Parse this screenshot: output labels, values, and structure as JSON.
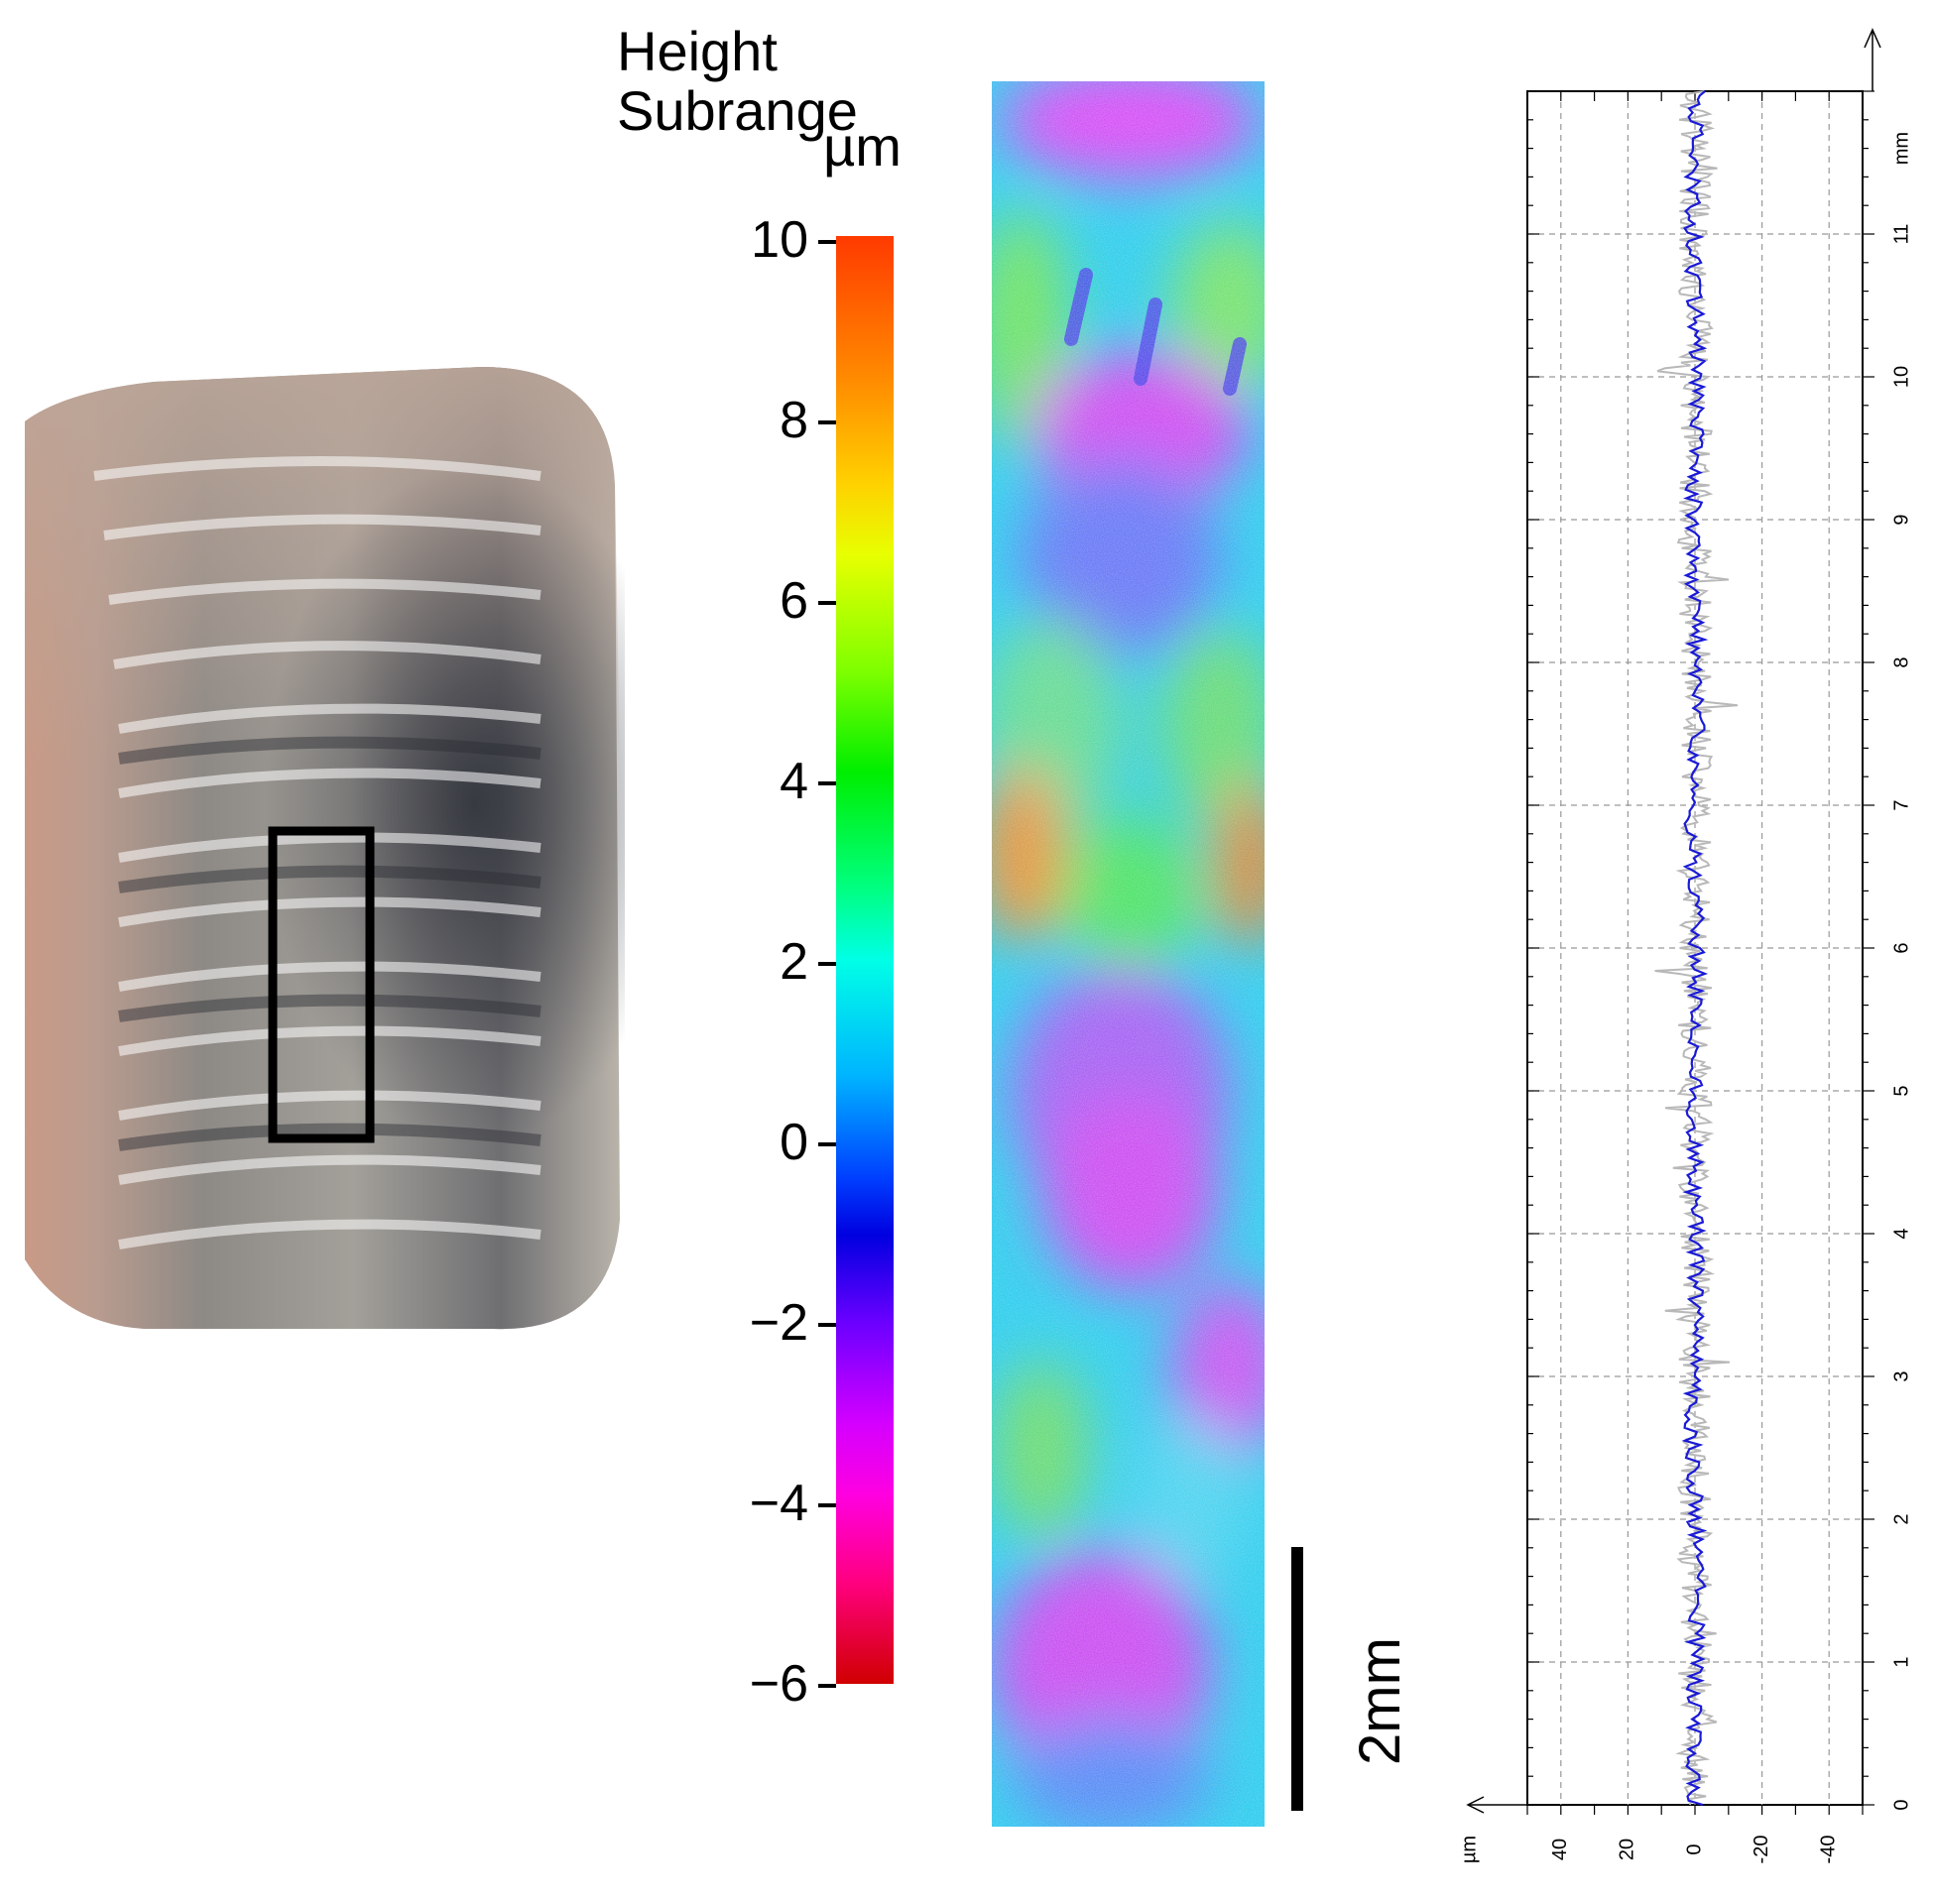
{
  "legend": {
    "title_line1": "Height",
    "title_line2": "Subrange",
    "unit": "µm"
  },
  "colorbar_ticks": [
    "10",
    "8",
    "6",
    "4",
    "2",
    "0",
    "−2",
    "−4",
    "−6"
  ],
  "scale_bar": {
    "label": "2mm"
  },
  "chart_data": {
    "type": "line",
    "title": "",
    "x_axis": {
      "label": "µm",
      "ticks": [
        "40",
        "20",
        "0",
        "-20",
        "-40"
      ],
      "range": [
        50,
        -50
      ]
    },
    "y_axis": {
      "label": "mm",
      "ticks": [
        "0",
        "1",
        "2",
        "3",
        "4",
        "5",
        "6",
        "7",
        "8",
        "9",
        "10",
        "11"
      ],
      "range": [
        0,
        12
      ]
    },
    "grid": true,
    "series": [
      {
        "color": "#1a1ad6",
        "description": "mean profile, fluctuating about 0 µm with amplitude ~±3 µm"
      },
      {
        "color": "#b8b8b8",
        "description": "raw profile envelope, roughly ±5 µm with occasional spikes to ±12 µm"
      }
    ]
  },
  "colors": {
    "profile_blue": "#1a1ad6",
    "profile_gray": "#b8b8b8"
  }
}
